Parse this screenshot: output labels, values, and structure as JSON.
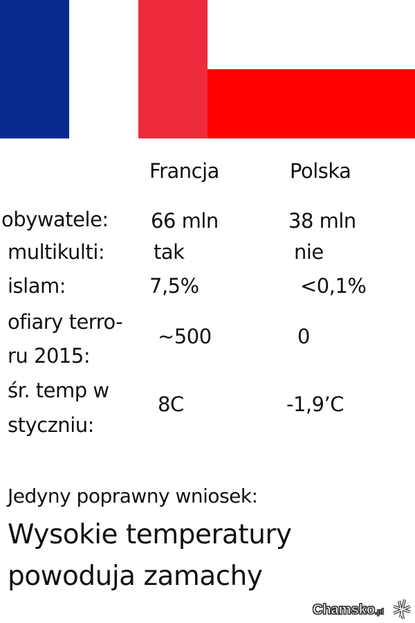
{
  "colors": {
    "france_blue": "#0b2a8f",
    "france_white": "#ffffff",
    "france_red": "#ee2b3c",
    "poland_white": "#ffffff",
    "poland_red": "#ff0000"
  },
  "headers": {
    "france": "Francja",
    "poland": "Polska"
  },
  "rows": [
    {
      "label": [
        "obywatele:"
      ],
      "france": "66 mln",
      "poland": "38 mln"
    },
    {
      "label": [
        "multikulti:"
      ],
      "france": "tak",
      "poland": "nie"
    },
    {
      "label": [
        "islam:"
      ],
      "france": "7,5%",
      "poland": "<0,1%"
    },
    {
      "label": [
        "ofiary terro-",
        "ru 2015:"
      ],
      "france": "~500",
      "poland": "0"
    },
    {
      "label": [
        "śr. temp w",
        "styczniu:"
      ],
      "france": "8C",
      "poland": "-1,9’C"
    }
  ],
  "conclusion": {
    "intro": "Jedyny poprawny wniosek:",
    "line1": "Wysokie temperatury",
    "line2": "powoduja zamachy"
  },
  "watermark": {
    "text": "Chamsko",
    "suffix": ".pl",
    "icon": "grid-logo-icon"
  }
}
